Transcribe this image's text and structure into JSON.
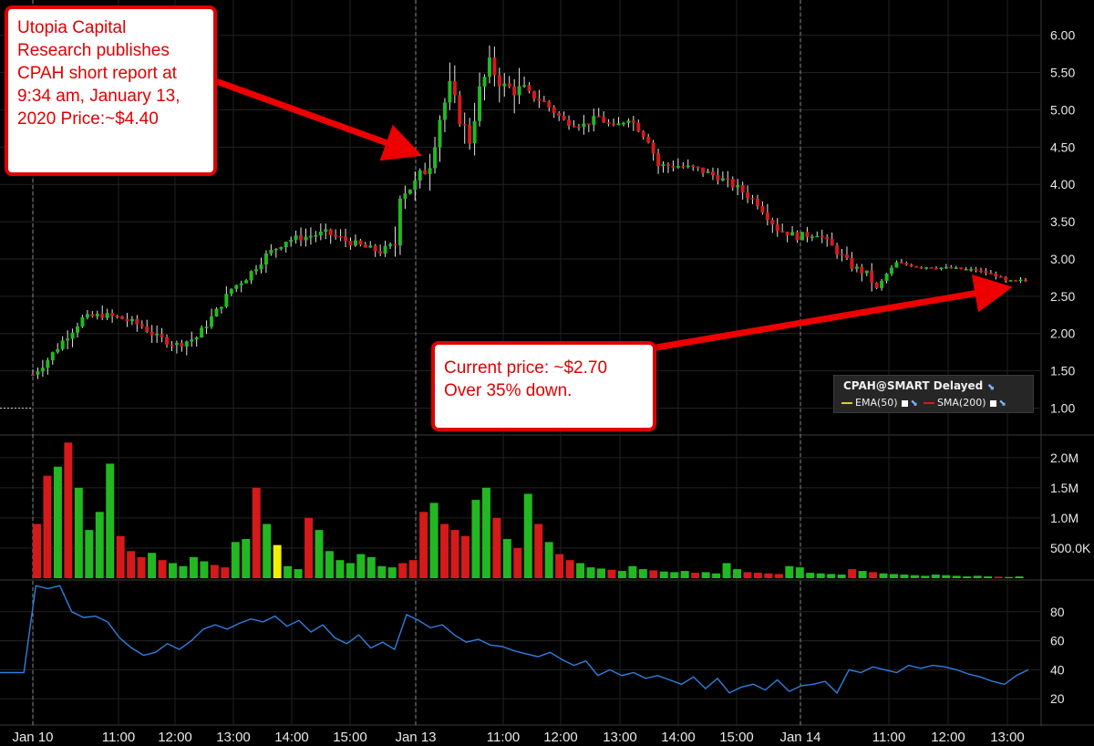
{
  "chart_data": [
    {
      "type": "candlestick",
      "instrument": "CPAH@SMART Delayed",
      "legend": [
        "EMA(50)",
        "SMA(200)"
      ],
      "y_ticks": [
        1.0,
        1.5,
        2.0,
        2.5,
        3.0,
        3.5,
        4.0,
        4.5,
        5.0,
        5.5,
        6.0
      ],
      "y_tick_labels": [
        "1.00",
        "1.50",
        "2.00",
        "2.50",
        "3.00",
        "3.50",
        "4.00",
        "4.50",
        "5.00",
        "5.50",
        "6.00"
      ],
      "ylim": [
        0.7,
        6.4
      ],
      "close_path": [
        [
          0,
          1.45
        ],
        [
          3,
          1.65
        ],
        [
          6,
          1.9
        ],
        [
          10,
          2.2
        ],
        [
          14,
          2.25
        ],
        [
          18,
          2.2
        ],
        [
          22,
          2.1
        ],
        [
          25,
          1.95
        ],
        [
          29,
          1.85
        ],
        [
          33,
          1.95
        ],
        [
          37,
          2.3
        ],
        [
          40,
          2.6
        ],
        [
          43,
          2.75
        ],
        [
          47,
          3.05
        ],
        [
          51,
          3.25
        ],
        [
          55,
          3.3
        ],
        [
          59,
          3.35
        ],
        [
          63,
          3.25
        ],
        [
          67,
          3.15
        ],
        [
          70,
          3.1
        ],
        [
          73,
          3.2
        ],
        [
          74,
          3.9
        ],
        [
          77,
          4.0
        ],
        [
          80,
          4.3
        ],
        [
          82,
          4.9
        ],
        [
          84,
          5.3
        ],
        [
          86,
          4.9
        ],
        [
          88,
          4.6
        ],
        [
          90,
          5.25
        ],
        [
          92,
          5.6
        ],
        [
          95,
          5.3
        ],
        [
          99,
          5.25
        ],
        [
          103,
          5.1
        ],
        [
          107,
          4.85
        ],
        [
          111,
          4.8
        ],
        [
          114,
          4.9
        ],
        [
          117,
          4.75
        ],
        [
          120,
          4.9
        ],
        [
          124,
          4.6
        ],
        [
          126,
          4.25
        ],
        [
          130,
          4.25
        ],
        [
          134,
          4.2
        ],
        [
          138,
          4.1
        ],
        [
          142,
          3.95
        ],
        [
          146,
          3.75
        ],
        [
          150,
          3.4
        ],
        [
          154,
          3.3
        ],
        [
          158,
          3.35
        ],
        [
          162,
          3.1
        ],
        [
          165,
          2.9
        ],
        [
          168,
          2.8
        ],
        [
          170,
          2.6
        ],
        [
          172,
          2.8
        ],
        [
          174,
          2.95
        ],
        [
          178,
          2.9
        ],
        [
          184,
          2.88
        ],
        [
          190,
          2.85
        ],
        [
          194,
          2.78
        ],
        [
          196,
          2.7
        ],
        [
          198,
          2.7
        ],
        [
          200,
          2.72
        ]
      ]
    },
    {
      "type": "bar",
      "series_name": "Volume",
      "y_ticks": [
        500000,
        1000000,
        1500000,
        2000000
      ],
      "y_tick_labels": [
        "500.0K",
        "1.0M",
        "1.5M",
        "2.0M"
      ],
      "ylim": [
        0,
        2300000
      ],
      "bar_heights_000s": [
        900,
        1700,
        1850,
        2250,
        1500,
        800,
        1100,
        1900,
        700,
        450,
        350,
        420,
        300,
        250,
        200,
        350,
        280,
        220,
        180,
        600,
        650,
        1500,
        900,
        550,
        200,
        150,
        1000,
        800,
        450,
        300,
        250,
        400,
        350,
        200,
        180,
        250,
        300,
        1100,
        1250,
        900,
        800,
        700,
        1300,
        1500,
        1000,
        650,
        500,
        1400,
        900,
        600,
        400,
        300,
        250,
        180,
        160,
        140,
        120,
        200,
        150,
        130,
        110,
        100,
        120,
        90,
        100,
        80,
        250,
        150,
        100,
        90,
        80,
        70,
        200,
        180,
        90,
        80,
        70,
        60,
        150,
        120,
        100,
        80,
        70,
        60,
        50,
        40,
        60,
        50,
        40,
        30,
        40,
        30,
        25,
        20,
        30
      ]
    },
    {
      "type": "line",
      "series_name": "Oscillator",
      "y_ticks": [
        20,
        40,
        60,
        80
      ],
      "y_tick_labels": [
        "20",
        "40",
        "60",
        "80"
      ],
      "ylim": [
        5,
        100
      ],
      "values": [
        38,
        38,
        38,
        98,
        96,
        98,
        80,
        76,
        77,
        73,
        62,
        55,
        50,
        52,
        58,
        54,
        60,
        68,
        71,
        68,
        72,
        75,
        73,
        77,
        70,
        74,
        66,
        71,
        62,
        58,
        64,
        55,
        59,
        54,
        78,
        74,
        69,
        71,
        64,
        59,
        61,
        57,
        56,
        53,
        51,
        49,
        52,
        47,
        43,
        46,
        36,
        40,
        36,
        38,
        34,
        36,
        33,
        30,
        35,
        27,
        34,
        24,
        28,
        30,
        26,
        33,
        25,
        29,
        30,
        32,
        24,
        40,
        38,
        42,
        40,
        38,
        43,
        41,
        43,
        42,
        40,
        37,
        35,
        32,
        30,
        36,
        40
      ]
    }
  ],
  "x_axis": {
    "labels": [
      "Jan 10",
      "11:00",
      "12:00",
      "13:00",
      "14:00",
      "15:00",
      "Jan 13",
      "11:00",
      "12:00",
      "13:00",
      "14:00",
      "15:00",
      "Jan 14",
      "11:00",
      "12:00",
      "13:00"
    ]
  },
  "annotations": {
    "report": "Utopia Capital Research publishes CPAH short report at 9:34 am, January 13, 2020 Price:~$4.40",
    "current": "Current price: ~$2.70 Over 35% down."
  },
  "colors": {
    "up": "#22b822",
    "down": "#d41a1a",
    "wick": "#e6e6e6",
    "oscillator": "#2f7fe0",
    "arrow": "#ee0000",
    "grid": "#222222"
  }
}
